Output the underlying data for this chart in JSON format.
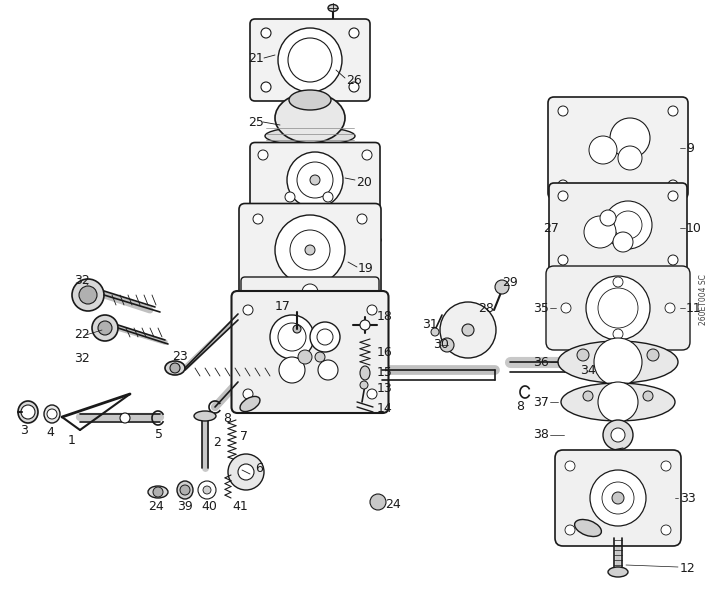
{
  "bg": "#ffffff",
  "lc": "#1a1a1a",
  "watermark": "260ET004 SC",
  "figsize": [
    7.2,
    5.98
  ],
  "dpi": 100
}
